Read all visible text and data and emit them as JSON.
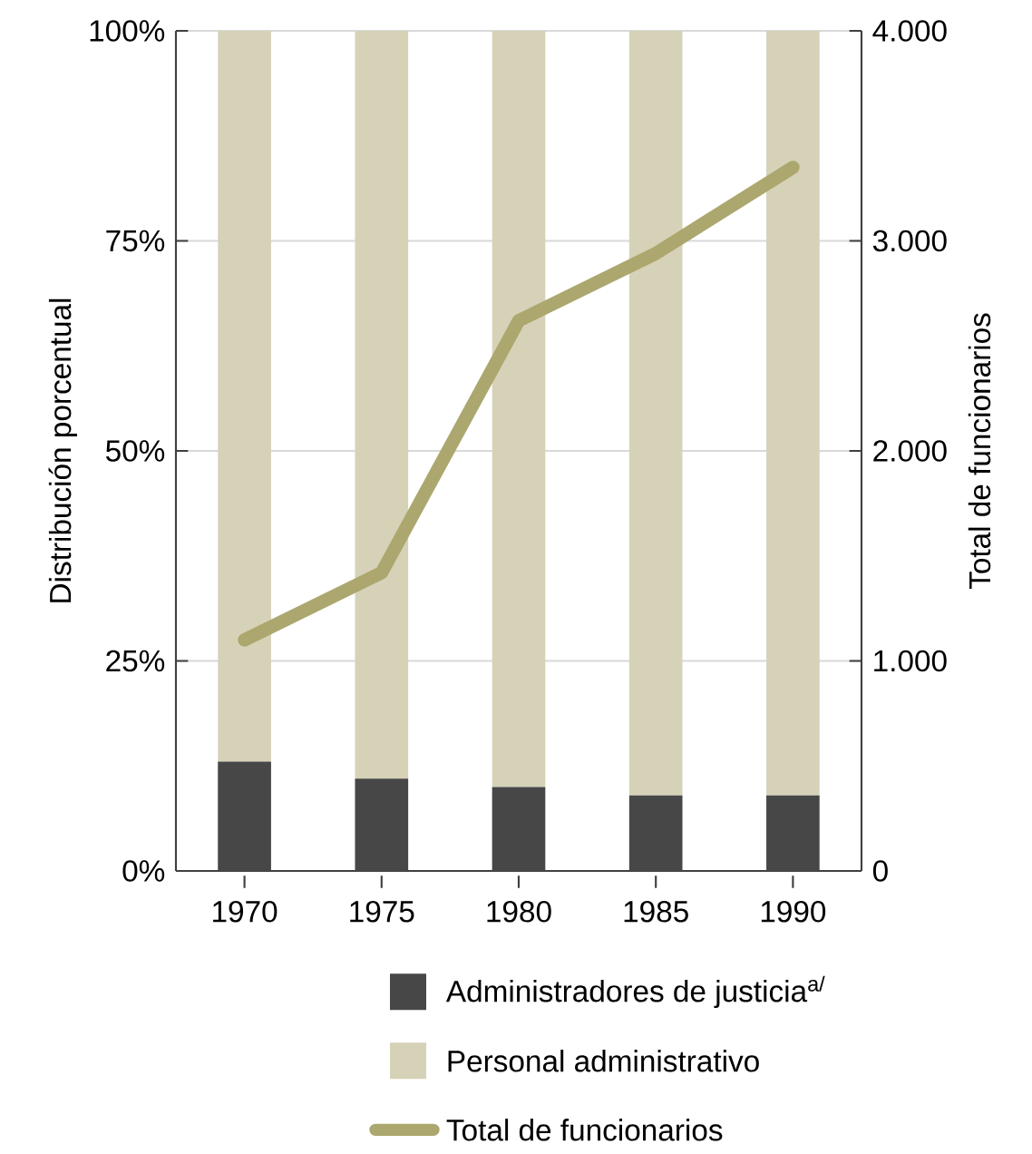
{
  "chart_data": {
    "type": "bar",
    "stacked": true,
    "ylabel": "Distribución porcentual",
    "y2label": "Total de funcionarios",
    "categories": [
      "1970",
      "1975",
      "1980",
      "1985",
      "1990"
    ],
    "series": [
      {
        "name": "Administradores de justicia$^{a/}$",
        "color": "#474747",
        "values": [
          13,
          11,
          10,
          9,
          9
        ]
      },
      {
        "name": "Personal administrativo",
        "color": "#d6d2b8",
        "values": [
          87,
          89,
          90,
          91,
          91
        ]
      },
      {
        "name": "Total de funcionarios",
        "type": "line",
        "axis": "y2",
        "color": "#aca76e",
        "values": [
          1100,
          1420,
          2620,
          2940,
          3350
        ]
      }
    ],
    "ylim": [
      0,
      100
    ],
    "yticks": [
      {
        "value": 0,
        "label": "0%"
      },
      {
        "value": 25,
        "label": "25%"
      },
      {
        "value": 50,
        "label": "50%"
      },
      {
        "value": 75,
        "label": "75%"
      },
      {
        "value": 100,
        "label": "100%"
      }
    ],
    "y2lim": [
      0,
      4000
    ],
    "y2ticks": [
      0,
      {
        "value": 1000,
        "label": "1.000"
      },
      {
        "value": 2000,
        "label": "2.000"
      },
      {
        "value": 3000,
        "label": "3.000"
      },
      {
        "value": 4000,
        "label": "4.000"
      }
    ],
    "grid": "y",
    "legend": "bottom"
  }
}
